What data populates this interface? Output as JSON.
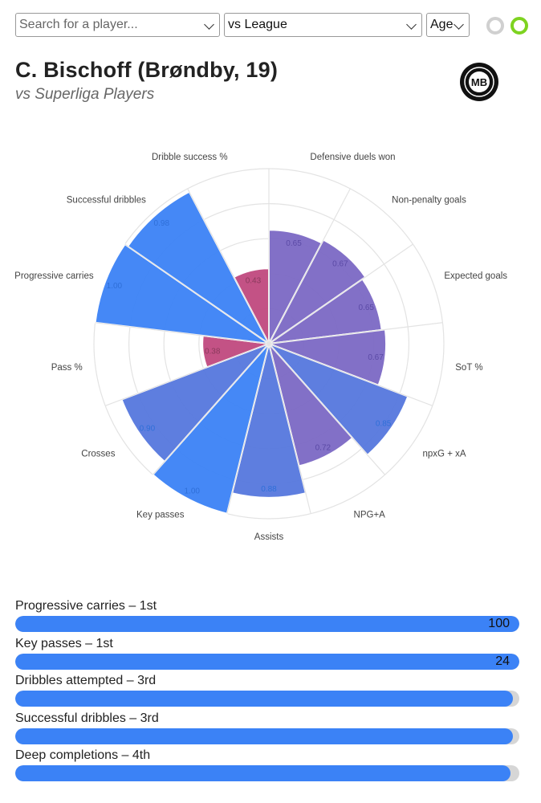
{
  "controls": {
    "search_placeholder": "Search for a player...",
    "comparison_value": "vs League",
    "age_value": "Age"
  },
  "header": {
    "title": "C. Bischoff (Brøndby, 19)",
    "subtitle": "vs Superliga Players",
    "logo_text": "MB"
  },
  "colors": {
    "attacking": "#7b68c4",
    "possession": "#3b82f6",
    "passing": "#c0497e",
    "bar_fill": "#3b82f6",
    "bar_track": "#d6d6d6",
    "toggle_active": "#7ed321"
  },
  "chart_data": {
    "type": "radar",
    "max": 1,
    "segments": [
      {
        "label": "Defensive duels won",
        "value": 0.65,
        "value_label": "0.65",
        "group": "attacking"
      },
      {
        "label": "Non-penalty goals",
        "value": 0.67,
        "value_label": "0.67",
        "group": "attacking"
      },
      {
        "label": "Expected goals",
        "value": 0.65,
        "value_label": "0.65",
        "group": "attacking"
      },
      {
        "label": "SoT %",
        "value": 0.67,
        "value_label": "0.67",
        "group": "attacking"
      },
      {
        "label": "npxG + xA",
        "value": 0.85,
        "value_label": "0.85",
        "group": "mixed"
      },
      {
        "label": "NPG+A",
        "value": 0.72,
        "value_label": "0.72",
        "group": "attacking"
      },
      {
        "label": "Assists",
        "value": 0.88,
        "value_label": "0.88",
        "group": "mixed"
      },
      {
        "label": "Key passes",
        "value": 1.0,
        "value_label": "1.00",
        "group": "possession"
      },
      {
        "label": "Crosses",
        "value": 0.9,
        "value_label": "0.90",
        "group": "mixed"
      },
      {
        "label": "Pass %",
        "value": 0.38,
        "value_label": "0.38",
        "group": "passing"
      },
      {
        "label": "Progressive carries",
        "value": 1.0,
        "value_label": "1.00",
        "group": "possession"
      },
      {
        "label": "Successful dribbles",
        "value": 0.98,
        "value_label": "0.98",
        "group": "possession"
      },
      {
        "label": "Dribble success %",
        "value": 0.43,
        "value_label": "0.43",
        "group": "passing"
      }
    ]
  },
  "rankings": [
    {
      "label": "Progressive carries – 1st",
      "fill": 1.0,
      "value": "100"
    },
    {
      "label": "Key passes – 1st",
      "fill": 1.0,
      "value": "24"
    },
    {
      "label": "Dribbles attempted – 3rd",
      "fill": 0.988,
      "value": ""
    },
    {
      "label": "Successful dribbles – 3rd",
      "fill": 0.988,
      "value": ""
    },
    {
      "label": "Deep completions – 4th",
      "fill": 0.982,
      "value": ""
    }
  ]
}
